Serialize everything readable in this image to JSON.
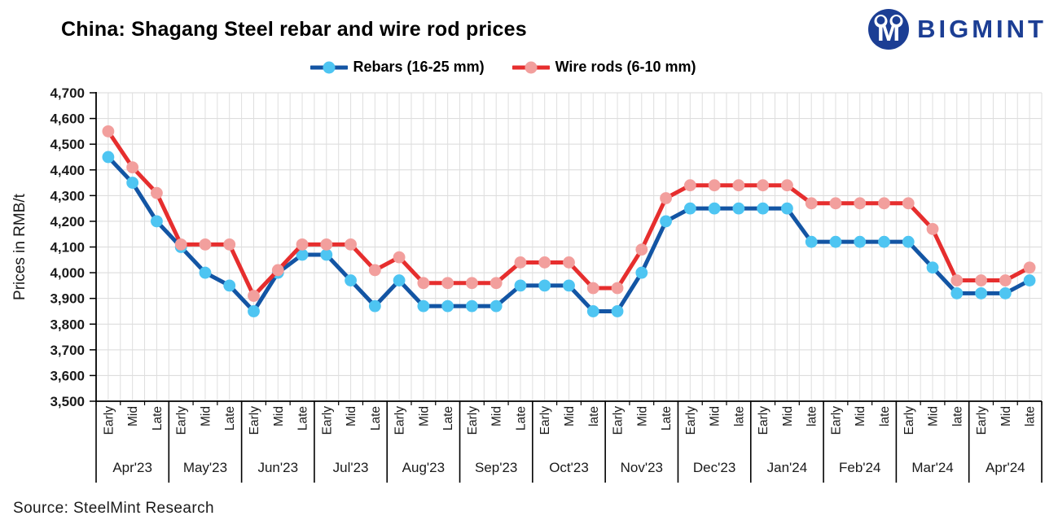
{
  "logo": {
    "text": "BIGMINT",
    "color": "#1c3e94"
  },
  "legend": {
    "items": [
      {
        "label": "Rebars (16-25 mm)"
      },
      {
        "label": "Wire rods (6-10 mm)"
      }
    ]
  },
  "source": "Source: SteelMint Research",
  "chart_data": {
    "type": "line",
    "title": "China: Shagang Steel rebar and wire rod prices",
    "ylabel": "Prices in RMB/t",
    "ylim": [
      3500,
      4700
    ],
    "ytick_step": 100,
    "grid": true,
    "legend_position": "top",
    "months": [
      {
        "label": "Apr'23",
        "periods": [
          "Early",
          "Mid",
          "Late"
        ]
      },
      {
        "label": "May'23",
        "periods": [
          "Early",
          "Mid",
          "Late"
        ]
      },
      {
        "label": "Jun'23",
        "periods": [
          "Early",
          "Mid",
          "Late"
        ]
      },
      {
        "label": "Jul'23",
        "periods": [
          "Early",
          "Mid",
          "Late"
        ]
      },
      {
        "label": "Aug'23",
        "periods": [
          "Early",
          "Mid",
          "Late"
        ]
      },
      {
        "label": "Sep'23",
        "periods": [
          "Early",
          "Mid",
          "Late"
        ]
      },
      {
        "label": "Oct'23",
        "periods": [
          "Early",
          "Mid",
          "late"
        ]
      },
      {
        "label": "Nov'23",
        "periods": [
          "Early",
          "Mid",
          "Late"
        ]
      },
      {
        "label": "Dec'23",
        "periods": [
          "Early",
          "Mid",
          "late"
        ]
      },
      {
        "label": "Jan'24",
        "periods": [
          "Early",
          "Mid",
          "late"
        ]
      },
      {
        "label": "Feb'24",
        "periods": [
          "Early",
          "Mid",
          "late"
        ]
      },
      {
        "label": "Mar'24",
        "periods": [
          "Early",
          "Mid",
          "late"
        ]
      },
      {
        "label": "Apr'24",
        "periods": [
          "Early",
          "Mid",
          "late"
        ]
      }
    ],
    "series": [
      {
        "name": "Rebars (16-25 mm)",
        "line_color": "#1355a4",
        "marker_color": "#4ec5f2",
        "values": [
          4450,
          4350,
          4200,
          4100,
          4000,
          3950,
          3850,
          4000,
          4070,
          4070,
          3970,
          3870,
          3970,
          3870,
          3870,
          3870,
          3870,
          3950,
          3950,
          3950,
          3850,
          3850,
          4000,
          4200,
          4250,
          4250,
          4250,
          4250,
          4250,
          4120,
          4120,
          4120,
          4120,
          4120,
          4020,
          3920,
          3920,
          3920,
          3970
        ]
      },
      {
        "name": "Wire rods (6-10 mm)",
        "line_color": "#e62e2e",
        "marker_color": "#f29f9d",
        "values": [
          4550,
          4410,
          4310,
          4110,
          4110,
          4110,
          3910,
          4010,
          4110,
          4110,
          4110,
          4010,
          4060,
          3960,
          3960,
          3960,
          3960,
          4040,
          4040,
          4040,
          3940,
          3940,
          4090,
          4290,
          4340,
          4340,
          4340,
          4340,
          4340,
          4270,
          4270,
          4270,
          4270,
          4270,
          4170,
          3970,
          3970,
          3970,
          4020
        ]
      }
    ]
  }
}
